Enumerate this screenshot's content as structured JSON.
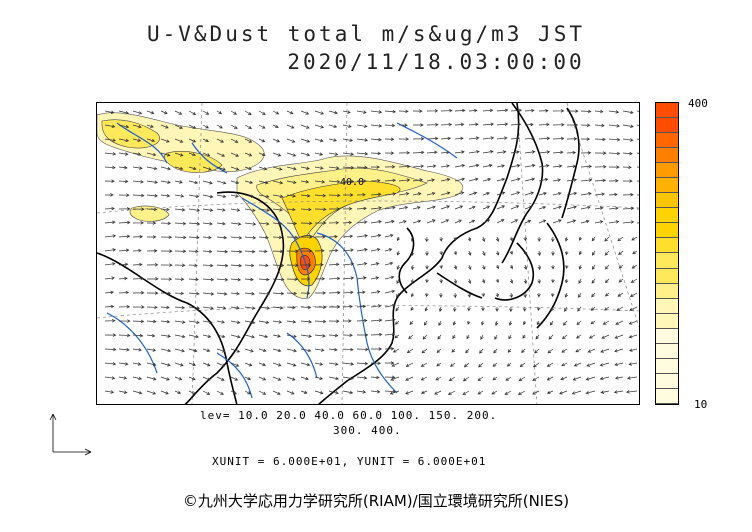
{
  "header": {
    "title_line1": "U-V&Dust total m/s&ug/m3 JST",
    "title_line2": "2020/11/18.03:00:00"
  },
  "colorbar": {
    "max_label": "400",
    "min_label": "10",
    "colors": [
      "#fffce0",
      "#fff6b8",
      "#fff08a",
      "#ffe85a",
      "#ffdf2c",
      "#ffd200",
      "#ffc400",
      "#ffb000",
      "#ff9a00",
      "#ff8000",
      "#ff6600",
      "#ff4d00"
    ]
  },
  "map_legend": {
    "levels_line1": "lev= 10.0 20.0 40.0 60.0 100. 150. 200.",
    "levels_line2": "300. 400.",
    "units": "XUNIT = 6.000E+01, YUNIT = 6.000E+01"
  },
  "map": {
    "contour_label": "40.0",
    "coastline_color": "#000000",
    "river_color": "#1f5fd6",
    "arrow_color": "#333333"
  },
  "footer": {
    "copyright": "©九州大学応用力学研究所(RIAM)/国立環境研究所(NIES)"
  }
}
